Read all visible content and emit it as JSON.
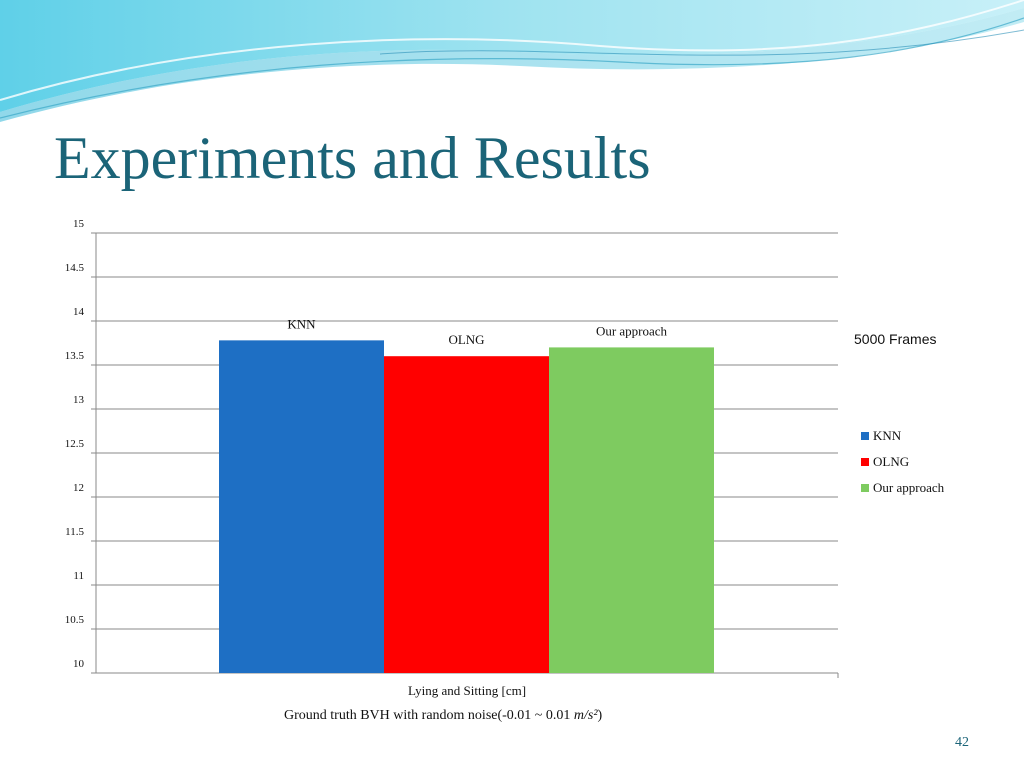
{
  "slide": {
    "title": "Experiments and Results",
    "side_note": "5000 Frames",
    "caption_prefix": "Ground truth BVH with random noise(-0.01 ~ 0.01 ",
    "caption_unit": "m/s²",
    "caption_suffix": ")",
    "page_number": "42"
  },
  "chart_data": {
    "type": "bar",
    "title": "",
    "xlabel": "Lying and Sitting [cm]",
    "ylabel": "",
    "ylim": [
      10,
      15
    ],
    "yticks": [
      "10",
      "10.5",
      "11",
      "11.5",
      "12",
      "12.5",
      "13",
      "13.5",
      "14",
      "14.5",
      "15"
    ],
    "grid": true,
    "legend_position": "right",
    "categories": [
      "Lying and Sitting [cm]"
    ],
    "series": [
      {
        "name": "KNN",
        "values": [
          13.78
        ],
        "color": "#1e6fc4",
        "data_label": "KNN"
      },
      {
        "name": "OLNG",
        "values": [
          13.6
        ],
        "color": "#ff0000",
        "data_label": "OLNG"
      },
      {
        "name": "Our approach",
        "values": [
          13.7
        ],
        "color": "#7ecb60",
        "data_label": "Our approach"
      }
    ]
  }
}
